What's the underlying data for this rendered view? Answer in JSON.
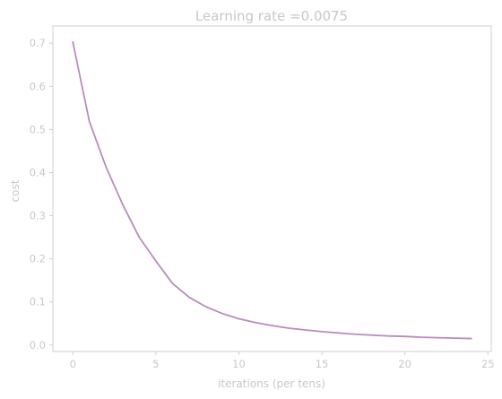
{
  "chart_data": {
    "type": "line",
    "title": "Learning rate =0.0075",
    "xlabel": "iterations (per tens)",
    "ylabel": "cost",
    "xlim": [
      -1.2,
      25.2
    ],
    "ylim": [
      -0.015,
      0.74
    ],
    "x_ticks": [
      0,
      5,
      10,
      15,
      20,
      25
    ],
    "y_ticks": [
      0.0,
      0.1,
      0.2,
      0.3,
      0.4,
      0.5,
      0.6,
      0.7
    ],
    "x_tick_labels": [
      "0",
      "5",
      "10",
      "15",
      "20",
      "25"
    ],
    "y_tick_labels": [
      "0.0",
      "0.1",
      "0.2",
      "0.3",
      "0.4",
      "0.5",
      "0.6",
      "0.7"
    ],
    "grid": false,
    "series": [
      {
        "x": [
          0,
          1,
          2,
          3,
          4,
          5,
          6,
          7,
          8,
          9,
          10,
          11,
          12,
          13,
          14,
          15,
          16,
          17,
          18,
          19,
          20,
          21,
          22,
          23,
          24
        ],
        "y": [
          0.703,
          0.518,
          0.413,
          0.326,
          0.25,
          0.195,
          0.143,
          0.111,
          0.089,
          0.073,
          0.061,
          0.052,
          0.045,
          0.039,
          0.035,
          0.031,
          0.028,
          0.025,
          0.023,
          0.021,
          0.02,
          0.018,
          0.017,
          0.016,
          0.015
        ],
        "color": "#b98bbf"
      }
    ],
    "colors": {
      "axes": "#cfcfcf",
      "text": "#c8c8c8",
      "line": "#b98bbf"
    }
  }
}
